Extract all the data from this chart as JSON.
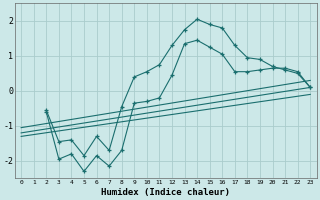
{
  "title": "",
  "xlabel": "Humidex (Indice chaleur)",
  "bg_color": "#cce8e8",
  "grid_color": "#aacccc",
  "line_color": "#1a6e6e",
  "xlim": [
    -0.5,
    23.5
  ],
  "ylim": [
    -2.5,
    2.5
  ],
  "xticks": [
    0,
    1,
    2,
    3,
    4,
    5,
    6,
    7,
    8,
    9,
    10,
    11,
    12,
    13,
    14,
    15,
    16,
    17,
    18,
    19,
    20,
    21,
    22,
    23
  ],
  "yticks": [
    -2,
    -1,
    0,
    1,
    2
  ],
  "curve1_x": [
    2,
    3,
    4,
    5,
    6,
    7,
    8,
    9,
    10,
    11,
    12,
    13,
    14,
    15,
    16,
    17,
    18,
    19,
    20,
    21,
    22,
    23
  ],
  "curve1_y": [
    -0.6,
    -1.95,
    -1.8,
    -2.3,
    -1.85,
    -2.15,
    -1.7,
    -0.35,
    -0.3,
    -0.2,
    0.45,
    1.35,
    1.45,
    1.25,
    1.05,
    0.55,
    0.55,
    0.6,
    0.65,
    0.65,
    0.55,
    0.1
  ],
  "curve2_x": [
    2,
    3,
    4,
    5,
    6,
    7,
    8,
    9,
    10,
    11,
    12,
    13,
    14,
    15,
    16,
    17,
    18,
    19,
    20,
    21,
    22,
    23
  ],
  "curve2_y": [
    -0.55,
    -1.45,
    -1.4,
    -1.85,
    -1.3,
    -1.7,
    -0.45,
    0.4,
    0.55,
    0.75,
    1.3,
    1.75,
    2.05,
    1.9,
    1.8,
    1.3,
    0.95,
    0.9,
    0.7,
    0.6,
    0.5,
    0.1
  ],
  "line1_x": [
    0,
    23
  ],
  "line1_y": [
    -1.2,
    0.1
  ],
  "line2_x": [
    0,
    23
  ],
  "line2_y": [
    -1.05,
    0.3
  ],
  "line3_x": [
    0,
    23
  ],
  "line3_y": [
    -1.3,
    -0.1
  ]
}
